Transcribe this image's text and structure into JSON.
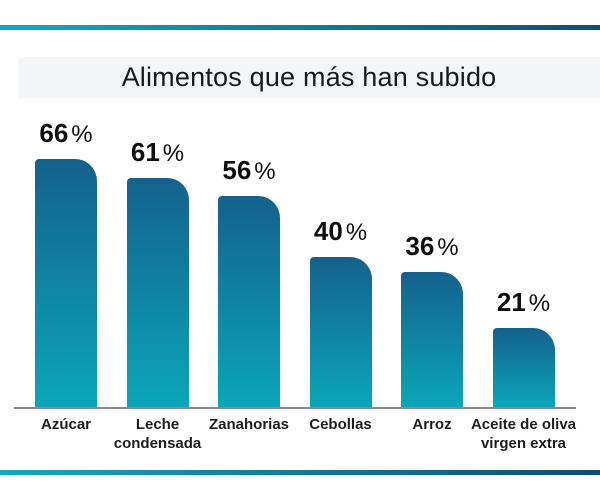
{
  "header": {
    "title": "Alimentos que más han subido"
  },
  "chart_data": {
    "type": "bar",
    "title": "Alimentos que más han subido",
    "categories": [
      "Azúcar",
      "Leche condensada",
      "Zanahorias",
      "Cebollas",
      "Arroz",
      "Aceite de oliva virgen extra"
    ],
    "values": [
      66,
      61,
      56,
      40,
      36,
      21
    ],
    "unit": "%",
    "xlabel": "",
    "ylabel": "",
    "ylim": [
      0,
      79
    ],
    "grid": false,
    "legend": false,
    "bar_color_top": "#14618c",
    "bar_color_bottom": "#0ba6b8",
    "baseline_color": "#8a8a8a",
    "accent_gradient_left": "#12a9bd",
    "accent_gradient_right": "#0d4e73",
    "title_band_color": "#f4f5f7",
    "value_label_color": "#0e0e0e",
    "category_label_color": "#1d1d1d"
  }
}
